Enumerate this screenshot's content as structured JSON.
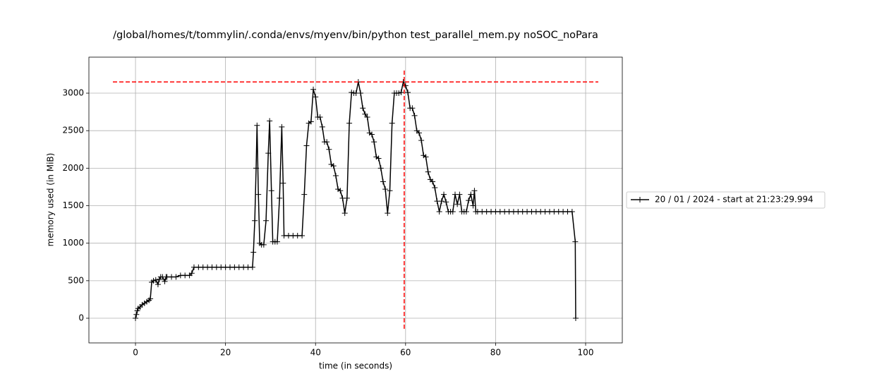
{
  "chart_data": {
    "type": "line",
    "title": "/global/homes/t/tommylin/.conda/envs/myenv/bin/python test_parallel_mem.py noSOC_noPara",
    "x_label": "time (in seconds)",
    "y_label": "memory used (in MiB)",
    "xlim": [
      -10.35,
      108.15
    ],
    "ylim": [
      -329,
      3480
    ],
    "xticks": [
      0,
      20,
      40,
      60,
      80,
      100
    ],
    "yticks": [
      0,
      500,
      1000,
      1500,
      2000,
      2500,
      3000
    ],
    "grid": true,
    "legend": "right",
    "peak": {
      "x": 59.7,
      "y": 3150,
      "color": "#ff0000"
    },
    "series": [
      {
        "name": "20 / 01 / 2024 - start at 21:23:29.994",
        "color": "#000000",
        "x": [
          0,
          0.2,
          0.4,
          0.6,
          1,
          1.5,
          2,
          2.5,
          3,
          3.3,
          3.6,
          4,
          4.5,
          5,
          5.3,
          5.6,
          6,
          6.5,
          6.8,
          7,
          8,
          9,
          10,
          11,
          12,
          12.5,
          13,
          14,
          15,
          16,
          17,
          18,
          19,
          20,
          21,
          22,
          23,
          24,
          25,
          26,
          26.2,
          26.5,
          26.8,
          27,
          27.3,
          27.6,
          28,
          28.5,
          29,
          29.5,
          29.8,
          30.2,
          30.5,
          31,
          31.5,
          32,
          32.5,
          32.8,
          33,
          34,
          35,
          36,
          37,
          37.5,
          38,
          38.5,
          39,
          39.5,
          40,
          40.5,
          41,
          41.5,
          42,
          42.5,
          43,
          43.5,
          44,
          44.5,
          45,
          45.5,
          46,
          46.5,
          47,
          47.5,
          48,
          48.5,
          49,
          49.5,
          50,
          50.5,
          51,
          51.5,
          52,
          52.5,
          53,
          53.5,
          54,
          54.5,
          55,
          55.5,
          56,
          56.5,
          57,
          57.5,
          58,
          58.5,
          59,
          59.5,
          60,
          60.5,
          61,
          61.5,
          62,
          62.5,
          63,
          63.5,
          64,
          64.5,
          65,
          65.5,
          66,
          66.5,
          67,
          67.5,
          68,
          68.5,
          69,
          69.5,
          70,
          70.5,
          71,
          71.5,
          72,
          72.5,
          73,
          73.5,
          74,
          74.5,
          75,
          75.3,
          75.6,
          76,
          77,
          78,
          79,
          80,
          81,
          82,
          83,
          84,
          85,
          86,
          87,
          88,
          89,
          90,
          91,
          92,
          93,
          94,
          95,
          96,
          97,
          97.7,
          97.8
        ],
        "values": [
          0,
          50,
          100,
          130,
          150,
          180,
          200,
          220,
          240,
          260,
          480,
          500,
          510,
          450,
          520,
          550,
          550,
          490,
          550,
          550,
          550,
          550,
          570,
          570,
          570,
          600,
          680,
          680,
          680,
          680,
          680,
          680,
          680,
          680,
          680,
          680,
          680,
          680,
          680,
          680,
          880,
          1300,
          2000,
          2570,
          1650,
          1000,
          980,
          980,
          1300,
          2200,
          2630,
          1700,
          1020,
          1020,
          1020,
          1600,
          2550,
          1800,
          1100,
          1100,
          1100,
          1100,
          1100,
          1650,
          2300,
          2600,
          2620,
          3050,
          2950,
          2680,
          2680,
          2550,
          2350,
          2350,
          2250,
          2050,
          2030,
          1900,
          1720,
          1700,
          1600,
          1400,
          1600,
          2600,
          3010,
          3000,
          3000,
          3150,
          3000,
          2800,
          2720,
          2680,
          2470,
          2450,
          2350,
          2150,
          2130,
          2000,
          1820,
          1720,
          1400,
          1700,
          2600,
          3000,
          3000,
          3000,
          3010,
          3150,
          3100,
          3010,
          2800,
          2800,
          2700,
          2500,
          2470,
          2370,
          2170,
          2150,
          1950,
          1850,
          1820,
          1740,
          1560,
          1420,
          1560,
          1650,
          1550,
          1420,
          1420,
          1420,
          1650,
          1520,
          1650,
          1420,
          1420,
          1420,
          1570,
          1650,
          1500,
          1700,
          1420,
          1420,
          1420,
          1420,
          1420,
          1420,
          1420,
          1420,
          1420,
          1420,
          1420,
          1420,
          1420,
          1420,
          1420,
          1420,
          1420,
          1420,
          1420,
          1420,
          1420,
          1420,
          1420,
          1020,
          0
        ]
      }
    ]
  }
}
